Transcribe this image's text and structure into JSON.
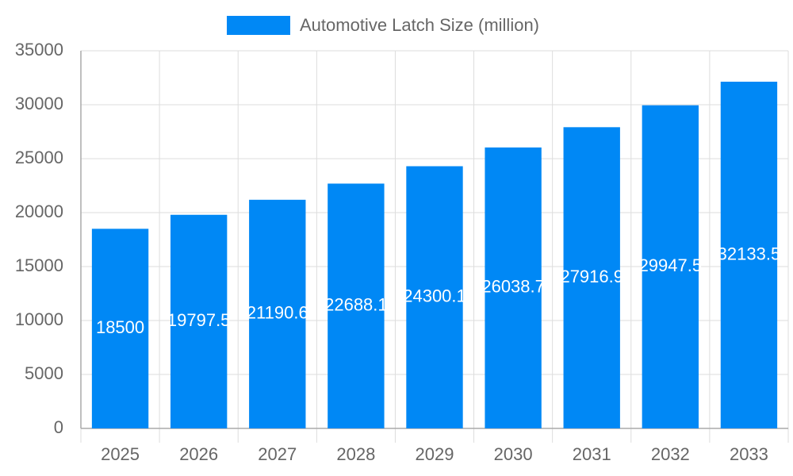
{
  "chart_data": {
    "type": "bar",
    "series": [
      {
        "name": "Automotive Latch Size (million)",
        "color": "#0088f5",
        "values": [
          18500,
          19797.5,
          21190.6,
          22688.1,
          24300.1,
          26038.7,
          27916.9,
          29947.5,
          32133.5
        ]
      }
    ],
    "categories": [
      "2025",
      "2026",
      "2027",
      "2028",
      "2029",
      "2030",
      "2031",
      "2032",
      "2033"
    ],
    "ylim": [
      0,
      35000
    ],
    "yticks": [
      0,
      5000,
      10000,
      15000,
      20000,
      25000,
      30000,
      35000
    ],
    "grid": true,
    "legend": "top"
  }
}
